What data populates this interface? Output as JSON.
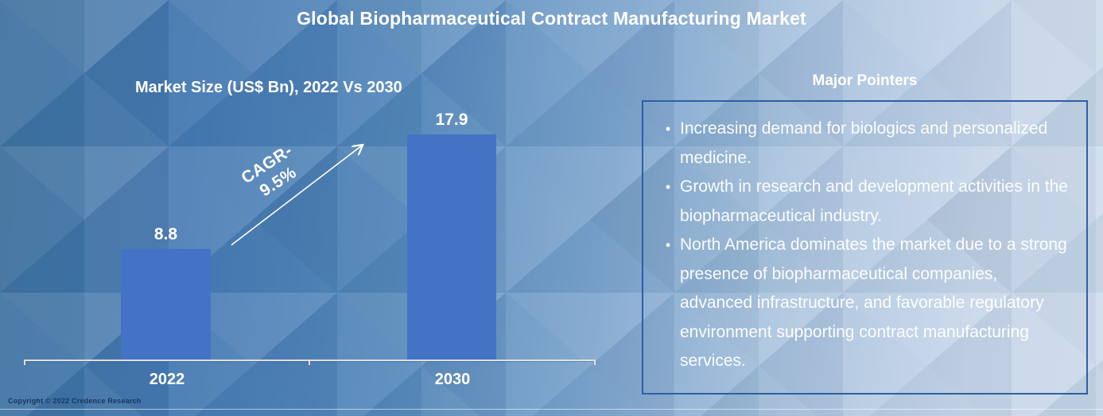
{
  "title": "Global Biopharmaceutical Contract Manufacturing Market",
  "chart_data": {
    "type": "bar",
    "title": "Market Size (US$ Bn), 2022 Vs 2030",
    "categories": [
      "2022",
      "2030"
    ],
    "values": [
      8.8,
      17.9
    ],
    "value_labels": [
      "8.8",
      "17.9"
    ],
    "ylim": [
      0,
      19
    ],
    "grid": false,
    "legend": "none",
    "bar_color": "#4472c4",
    "annotation": {
      "line1": "CAGR-",
      "line2": "9.5%"
    }
  },
  "pointers": {
    "heading": "Major Pointers",
    "items": [
      "Increasing demand for biologics and personalized medicine.",
      "Growth in research and development activities in the biopharmaceutical industry.",
      "North America dominates the market due to a strong presence of biopharmaceutical companies, advanced infrastructure, and favorable regulatory environment supporting contract manufacturing services."
    ],
    "bullet_glyph": "•"
  },
  "footer": {
    "copyright": "Copyright © 2022 Credence Research"
  },
  "colors": {
    "bar": "#4472c4",
    "box_border": "#2e5fa6",
    "background_left": "#40739f",
    "background_right": "#ccdaeb",
    "axis": "#dfdfdf",
    "text": "#ffffff",
    "copyright_text": "#17365d"
  }
}
